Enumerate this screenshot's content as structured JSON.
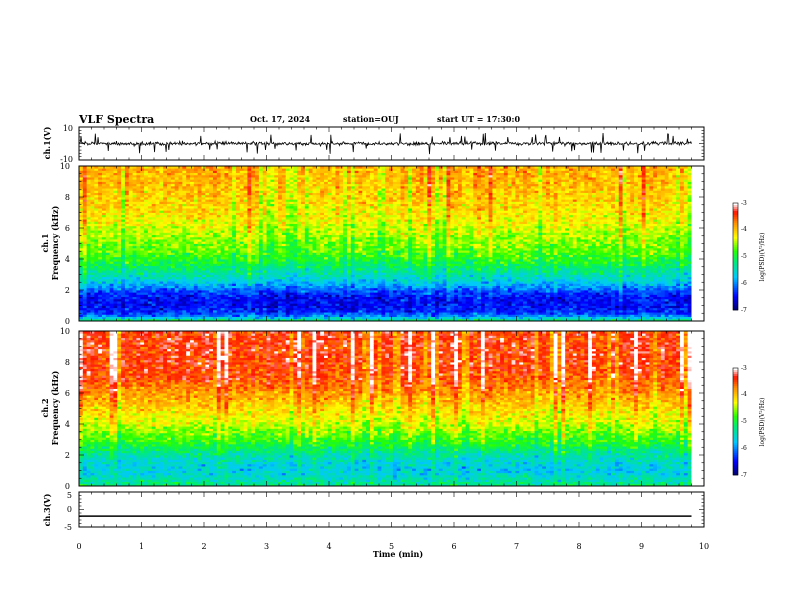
{
  "header": {
    "title": "VLF Spectra",
    "date": "Oct. 17, 2024",
    "station": "station=OUJ",
    "start": "start UT =  17:30:0"
  },
  "chart_data": [
    {
      "type": "line",
      "panel": "ch1-waveform",
      "ylabel": "ch.1(V)",
      "ylim": [
        -10,
        10
      ],
      "y_ticks": [
        "10",
        "-10"
      ],
      "xlim": [
        0,
        10
      ],
      "data_extent_min": 9.8,
      "baseline_v": 0.0,
      "typical_amplitude_v": 1.5,
      "spike_amplitude_v": 6.0
    },
    {
      "type": "heatmap",
      "panel": "ch1-spectrogram",
      "xlim": [
        0,
        10
      ],
      "ylim": [
        0,
        10
      ],
      "y_ticks": [
        "0",
        "2",
        "4",
        "6",
        "8",
        "10"
      ],
      "ylabel_lines": [
        "ch.1",
        "Frequency (kHz)"
      ],
      "colorbar": {
        "label": "log(PSD)(V²/Hz)",
        "range": [
          -7,
          -3
        ],
        "ticks": [
          "-3",
          "-4",
          "-5",
          "-6",
          "-7"
        ]
      },
      "profile_freq_khz": [
        0.0,
        0.3,
        0.6,
        1.0,
        1.5,
        2.0,
        2.3,
        2.7,
        3.2,
        3.8,
        4.5,
        5.5,
        6.5,
        7.5,
        8.5,
        9.5,
        10.0
      ],
      "profile_log_psd": [
        -5.0,
        -6.0,
        -6.4,
        -6.5,
        -6.5,
        -6.2,
        -5.9,
        -5.6,
        -5.3,
        -5.0,
        -4.7,
        -4.5,
        -4.25,
        -4.1,
        -4.0,
        -3.9,
        -3.9
      ]
    },
    {
      "type": "heatmap",
      "panel": "ch2-spectrogram",
      "xlim": [
        0,
        10
      ],
      "ylim": [
        0,
        10
      ],
      "y_ticks": [
        "0",
        "2",
        "4",
        "6",
        "8",
        "10"
      ],
      "ylabel_lines": [
        "ch.2",
        "Frequency (kHz)"
      ],
      "colorbar": {
        "label": "log(PSD)(V²/Hz)",
        "range": [
          -7,
          -3
        ],
        "ticks": [
          "-3",
          "-4",
          "-5",
          "-6",
          "-7"
        ]
      },
      "profile_freq_khz": [
        0.0,
        0.5,
        1.0,
        1.5,
        2.0,
        2.5,
        3.0,
        3.5,
        4.0,
        5.0,
        6.0,
        7.0,
        8.0,
        9.0,
        10.0
      ],
      "profile_log_psd": [
        -5.2,
        -5.5,
        -5.7,
        -5.6,
        -5.4,
        -5.1,
        -4.8,
        -4.6,
        -4.4,
        -4.1,
        -3.8,
        -3.5,
        -3.4,
        -3.4,
        -3.4
      ]
    },
    {
      "type": "line",
      "panel": "ch3-waveform",
      "ylabel": "ch.3(V)",
      "ylim": [
        -5,
        5
      ],
      "y_ticks": [
        "5",
        "0",
        "-5"
      ],
      "xlim": [
        0,
        10
      ],
      "xlabel": "Time (min)",
      "x_ticks": [
        "0",
        "1",
        "2",
        "3",
        "4",
        "5",
        "6",
        "7",
        "8",
        "9",
        "10"
      ],
      "data_extent_min": 9.8,
      "constant_value_v": -1.9
    }
  ]
}
